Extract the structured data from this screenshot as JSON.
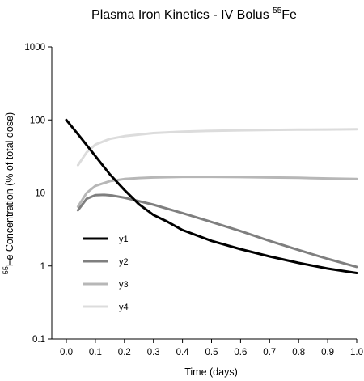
{
  "chart_data": {
    "type": "line",
    "title": "Plasma Iron Kinetics - IV Bolus",
    "title_superscript": "55",
    "title_suffix": "Fe",
    "xlabel": "Time (days)",
    "ylabel_superscript": "55",
    "ylabel": "Fe Concentration (% of total dose)",
    "x_scale": "linear",
    "y_scale": "log",
    "xlim": [
      0,
      1.0
    ],
    "ylim": [
      0.1,
      1000
    ],
    "x_ticks": [
      {
        "value": 0.0,
        "label": "0.0"
      },
      {
        "value": 0.1,
        "label": "0.1"
      },
      {
        "value": 0.2,
        "label": "0.2"
      },
      {
        "value": 0.3,
        "label": "0.3"
      },
      {
        "value": 0.4,
        "label": "0.4"
      },
      {
        "value": 0.5,
        "label": "0.5"
      },
      {
        "value": 0.6,
        "label": "0.6"
      },
      {
        "value": 0.7,
        "label": "0.7"
      },
      {
        "value": 0.8,
        "label": "0.8"
      },
      {
        "value": 0.9,
        "label": "0.9"
      },
      {
        "value": 1.0,
        "label": "1.0"
      }
    ],
    "y_ticks": [
      {
        "value": 0.1,
        "label": "0.1"
      },
      {
        "value": 1,
        "label": "1"
      },
      {
        "value": 10,
        "label": "10"
      },
      {
        "value": 100,
        "label": "100"
      },
      {
        "value": 1000,
        "label": "1000"
      }
    ],
    "grid": false,
    "legend_position": "bottom-left",
    "series": [
      {
        "name": "y1",
        "color": "#000000",
        "x": [
          0.0,
          0.05,
          0.1,
          0.15,
          0.2,
          0.25,
          0.3,
          0.35,
          0.4,
          0.5,
          0.6,
          0.7,
          0.8,
          0.9,
          1.0
        ],
        "y": [
          100,
          57,
          32,
          18,
          11,
          7,
          5,
          4,
          3.1,
          2.2,
          1.7,
          1.35,
          1.1,
          0.92,
          0.8
        ]
      },
      {
        "name": "y2",
        "color": "#7f7f7f",
        "x": [
          0.04,
          0.07,
          0.1,
          0.13,
          0.16,
          0.2,
          0.25,
          0.3,
          0.4,
          0.5,
          0.6,
          0.7,
          0.8,
          0.9,
          1.0
        ],
        "y": [
          5.8,
          8.3,
          9.3,
          9.4,
          9.2,
          8.6,
          7.7,
          6.9,
          5.3,
          4.0,
          3.0,
          2.2,
          1.65,
          1.25,
          0.97
        ]
      },
      {
        "name": "y3",
        "color": "#b7b7b7",
        "x": [
          0.04,
          0.07,
          0.1,
          0.15,
          0.2,
          0.25,
          0.3,
          0.4,
          0.5,
          0.6,
          0.7,
          0.8,
          0.9,
          1.0
        ],
        "y": [
          6.5,
          10,
          12.5,
          14.5,
          15.5,
          16,
          16.3,
          16.6,
          16.6,
          16.5,
          16.3,
          16.1,
          15.8,
          15.5
        ]
      },
      {
        "name": "y4",
        "color": "#dcdcdc",
        "x": [
          0.04,
          0.07,
          0.1,
          0.15,
          0.2,
          0.25,
          0.3,
          0.4,
          0.5,
          0.6,
          0.7,
          0.8,
          0.9,
          1.0
        ],
        "y": [
          24,
          36,
          46,
          55,
          60,
          63,
          66,
          69,
          71,
          72,
          73,
          73.5,
          74,
          74.5
        ]
      }
    ]
  }
}
